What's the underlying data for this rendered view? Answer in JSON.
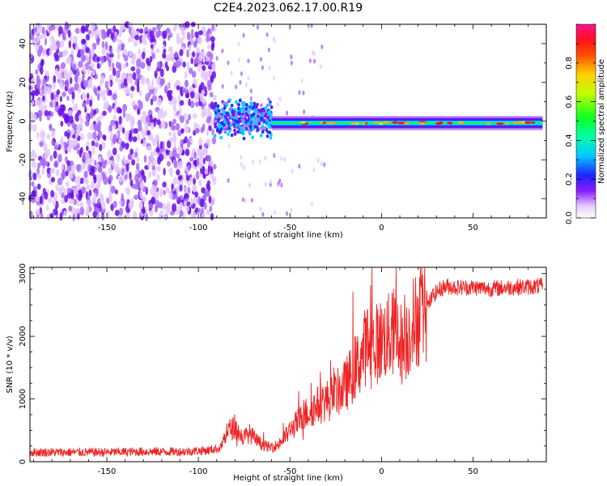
{
  "title": "C2E4.2023.062.17.00.R19",
  "chart_data": [
    {
      "type": "heatmap",
      "xlabel": "Height of straight line (km)",
      "ylabel": "Frequency (Hz)",
      "xlim": [
        -192,
        90
      ],
      "ylim": [
        -50,
        50
      ],
      "xticks": [
        -150,
        -100,
        -50,
        0,
        50
      ],
      "yticks": [
        -40,
        -20,
        0,
        20,
        40
      ],
      "grid": false,
      "colorbar": {
        "label": "Normalized spectral amplitude",
        "range": [
          0.0,
          1.0
        ],
        "ticks": [
          0.0,
          0.2,
          0.4,
          0.6,
          0.8
        ],
        "tick_labels": [
          "0.0",
          "0.2",
          "0.4",
          "0.6",
          "0.8"
        ]
      },
      "regions": [
        {
          "x_range": [
            -192,
            -91
          ],
          "description": "broadband noise speckle across all frequencies",
          "amplitude": 0.05
        },
        {
          "x_range": [
            -91,
            -60
          ],
          "center_hz": 1,
          "halfwidth_hz": 8,
          "peak_amplitude": 0.45
        },
        {
          "x_range": [
            -60,
            88
          ],
          "center_hz": -1,
          "halfwidth_hz": 3,
          "peak_amplitude": 1.0
        }
      ]
    },
    {
      "type": "line",
      "xlabel": "Height of straight line (km)",
      "ylabel": "SNR (10 * v/v)",
      "xlim": [
        -192,
        90
      ],
      "ylim": [
        0,
        3100
      ],
      "xticks": [
        -150,
        -100,
        -50,
        0,
        50
      ],
      "yticks": [
        0,
        1000,
        2000,
        3000
      ],
      "grid": false,
      "color": "#ee2222",
      "x": [
        -192,
        -170,
        -150,
        -130,
        -110,
        -95,
        -88,
        -84,
        -80,
        -76,
        -72,
        -68,
        -64,
        -60,
        -56,
        -52,
        -48,
        -44,
        -40,
        -36,
        -32,
        -28,
        -24,
        -20,
        -16,
        -12,
        -8,
        -4,
        0,
        4,
        8,
        12,
        16,
        20,
        24,
        28,
        32,
        36,
        40,
        50,
        60,
        70,
        80,
        88
      ],
      "y": [
        150,
        150,
        150,
        160,
        160,
        180,
        220,
        500,
        550,
        380,
        450,
        330,
        260,
        220,
        280,
        420,
        560,
        680,
        800,
        880,
        950,
        1000,
        1100,
        1200,
        1400,
        1600,
        1900,
        1850,
        1950,
        2000,
        2100,
        1800,
        2150,
        2300,
        2400,
        2650,
        2750,
        2800,
        2780,
        2780,
        2760,
        2780,
        2790,
        2800
      ]
    }
  ]
}
